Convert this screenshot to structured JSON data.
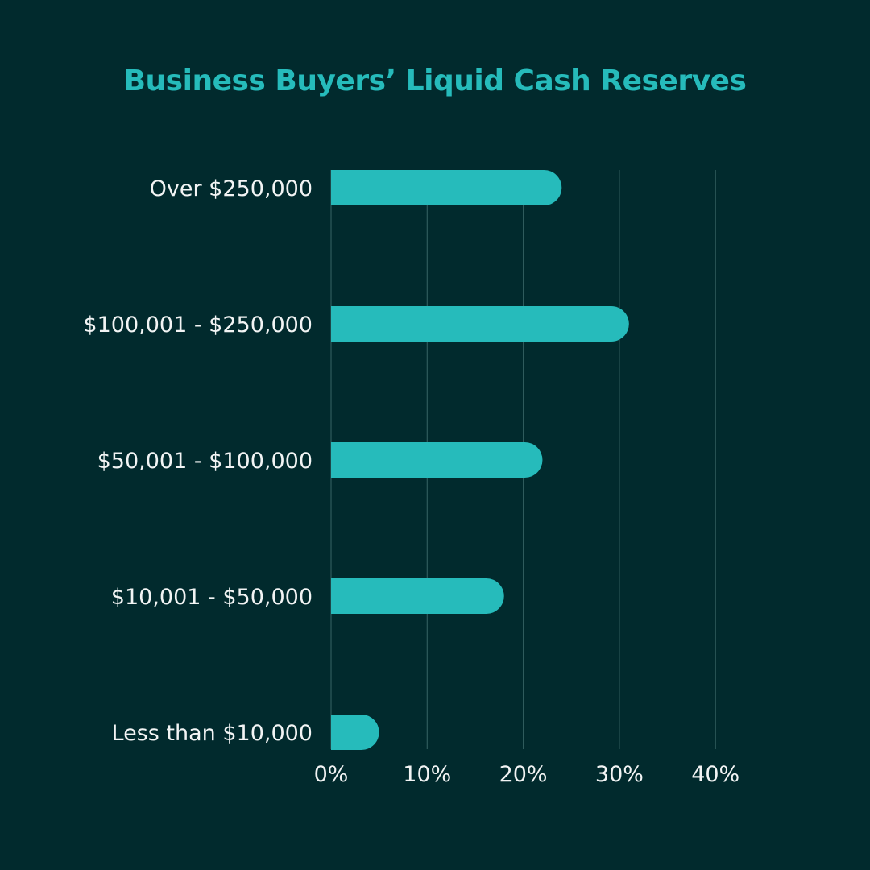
{
  "chart_data": {
    "type": "bar",
    "orientation": "horizontal",
    "title": "Business Buyers’ Liquid Cash Reserves",
    "categories": [
      "Over $250,000",
      "$100,001 - $250,000",
      "$50,001 - $100,000",
      "$10,001 - $50,000",
      "Less than $10,000"
    ],
    "values": [
      24,
      31,
      22,
      18,
      5
    ],
    "unit": "%",
    "xlim": [
      0,
      40
    ],
    "xticks": [
      0,
      10,
      20,
      30,
      40
    ],
    "xtick_labels": [
      "0%",
      "10%",
      "20%",
      "30%",
      "40%"
    ],
    "grid": true,
    "xlabel": "",
    "ylabel": "",
    "colors": {
      "bar": "#26bbbb",
      "title": "#26bbbb",
      "background": "#012a2d",
      "gridline": "#2f5b5c",
      "text": "#f2f4f4"
    }
  }
}
